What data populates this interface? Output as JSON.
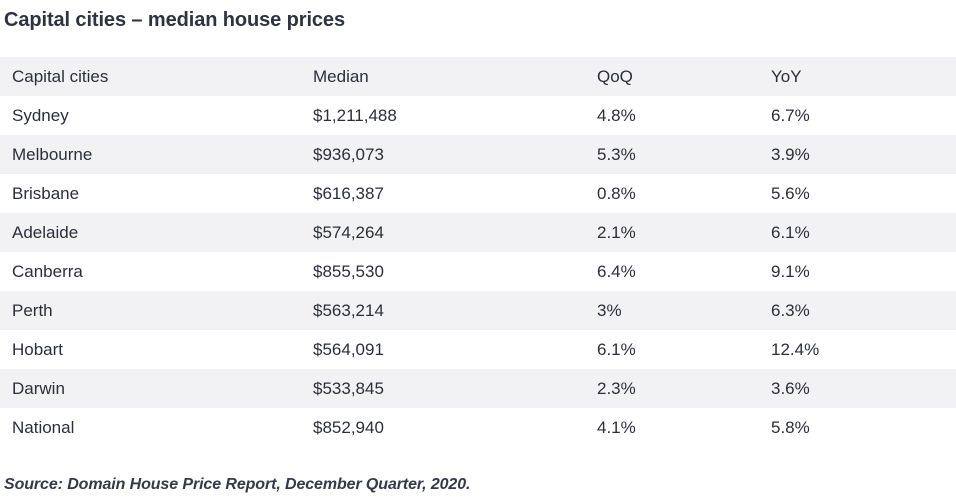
{
  "title": "Capital cities – median house prices",
  "table": {
    "headers": [
      "Capital cities",
      "Median",
      "QoQ",
      "YoY"
    ],
    "rows": [
      [
        "Sydney",
        "$1,211,488",
        "4.8%",
        "6.7%"
      ],
      [
        "Melbourne",
        "$936,073",
        "5.3%",
        "3.9%"
      ],
      [
        "Brisbane",
        "$616,387",
        "0.8%",
        "5.6%"
      ],
      [
        "Adelaide",
        "$574,264",
        "2.1%",
        "6.1%"
      ],
      [
        "Canberra",
        "$855,530",
        "6.4%",
        "9.1%"
      ],
      [
        "Perth",
        "$563,214",
        "3%",
        "6.3%"
      ],
      [
        "Hobart",
        "$564,091",
        "6.1%",
        "12.4%"
      ],
      [
        "Darwin",
        "$533,845",
        "2.3%",
        "3.6%"
      ],
      [
        "National",
        "$852,940",
        "4.1%",
        "5.8%"
      ]
    ]
  },
  "source": "Source: Domain House Price Report, December Quarter, 2020.",
  "colors": {
    "shaded_row": "#f2f2f4",
    "text": "#2b2f3a"
  }
}
